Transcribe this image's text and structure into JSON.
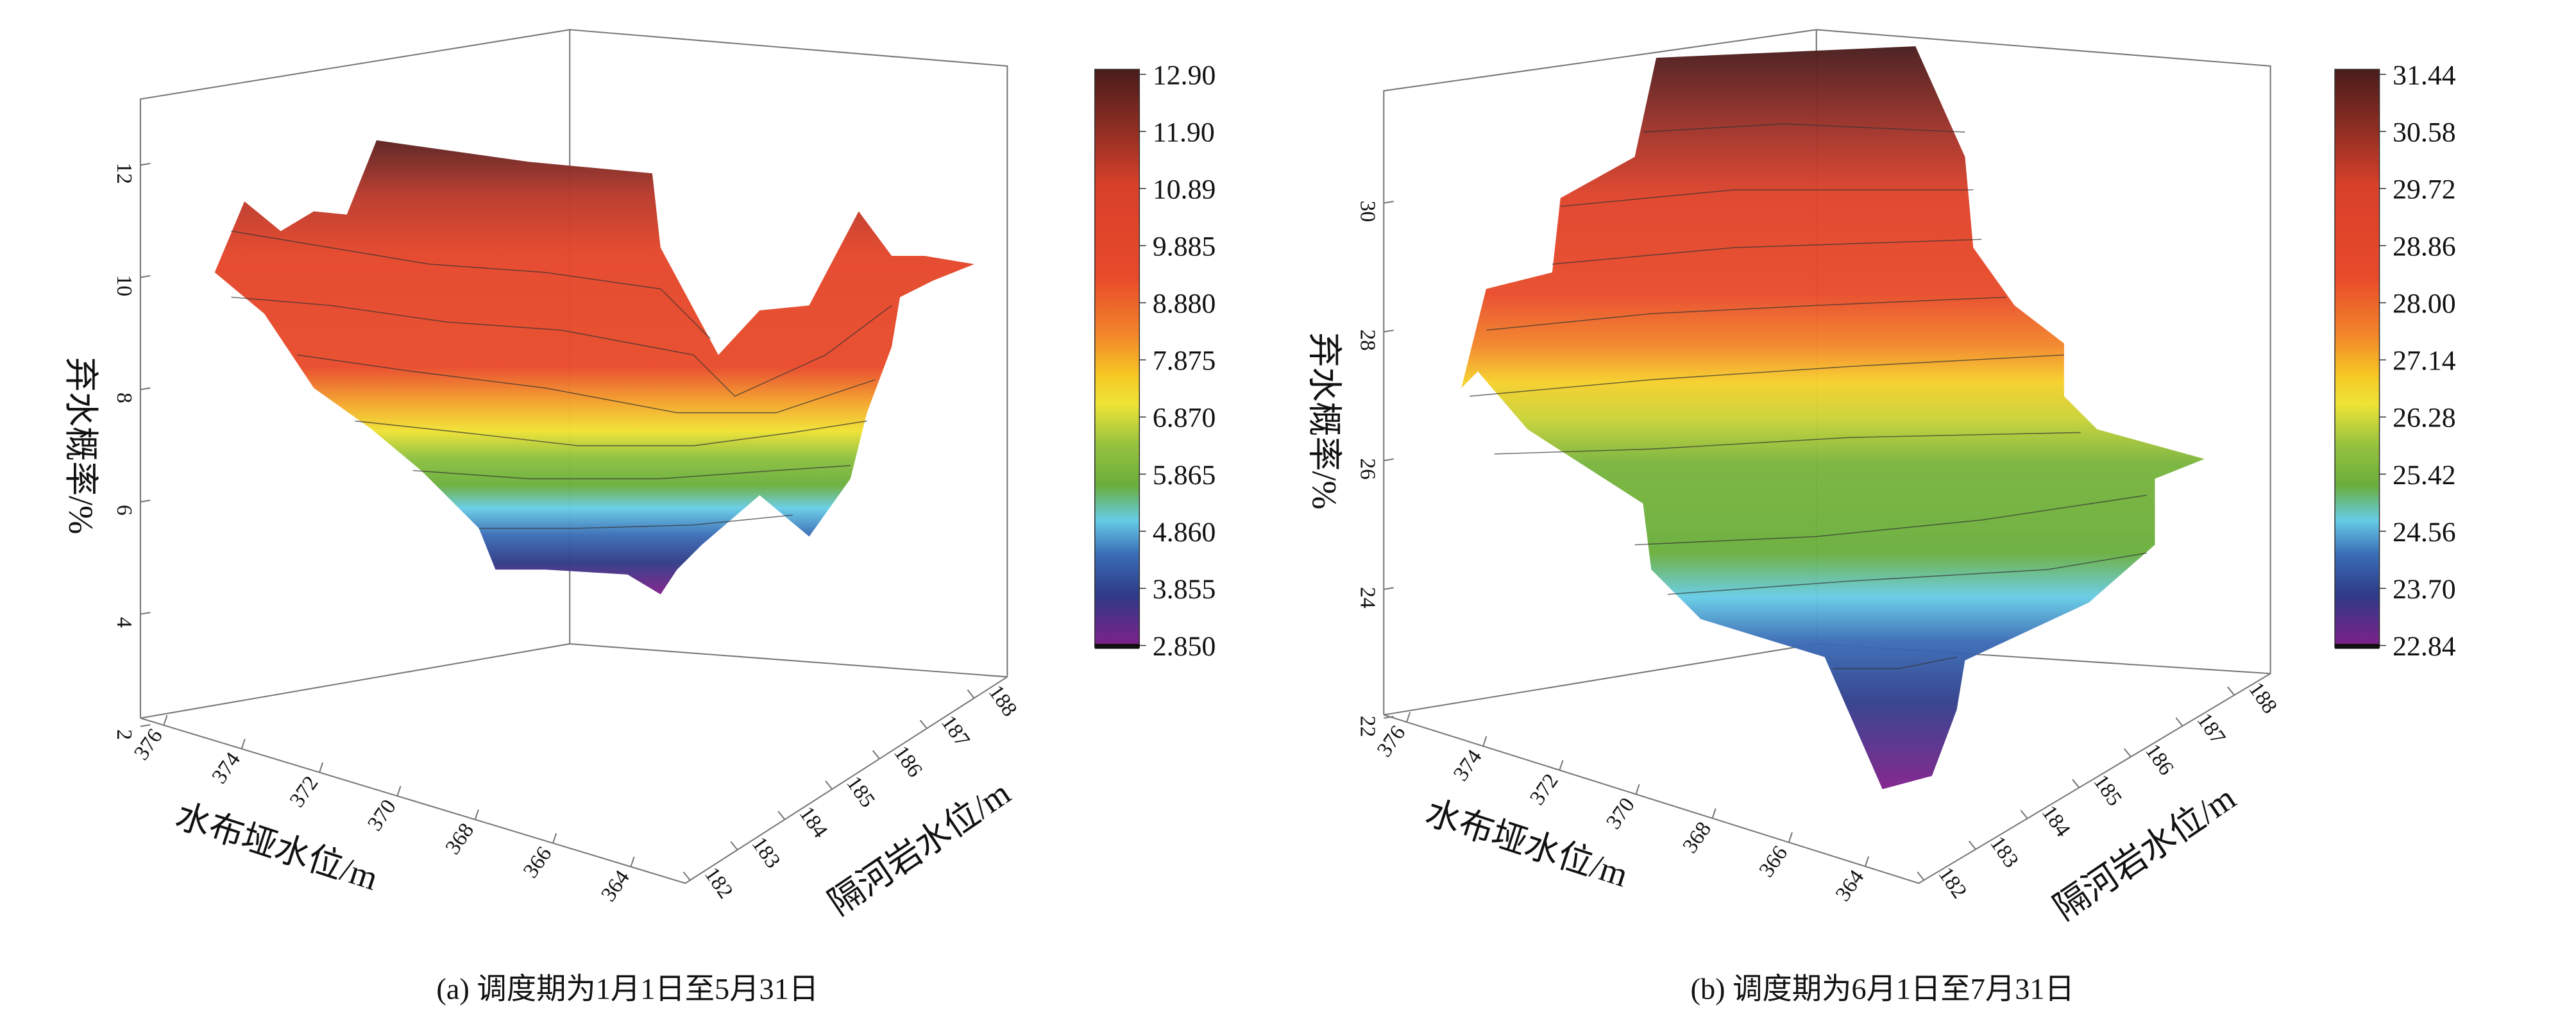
{
  "chart_data": [
    {
      "type": "surface",
      "panel_caption": "(a) 调度期为1月1日至5月31日",
      "xlabel": "水布垭水位/m",
      "ylabel": "隔河岩水位/m",
      "zlabel": "弃水概率/%",
      "x_ticks": [
        "376",
        "374",
        "372",
        "370",
        "368",
        "366",
        "364"
      ],
      "y_ticks": [
        "182",
        "183",
        "184",
        "185",
        "186",
        "187",
        "188"
      ],
      "z_ticks": [
        "12",
        "10",
        "8",
        "6",
        "4",
        "2"
      ],
      "xlim": [
        364,
        376
      ],
      "ylim": [
        182,
        188
      ],
      "zlim": [
        2,
        13
      ],
      "colorbar_labels": [
        "12.90",
        "11.90",
        "10.89",
        "9.885",
        "8.880",
        "7.875",
        "6.870",
        "5.865",
        "4.860",
        "3.855",
        "2.850"
      ],
      "colorbar_range": [
        2.85,
        12.9
      ],
      "colormap": "rainbow (purple-blue-cyan-green-yellow-orange-red-dark brown)"
    },
    {
      "type": "surface",
      "panel_caption": "(b) 调度期为6月1日至7月31日",
      "xlabel": "水布垭水位/m",
      "ylabel": "隔河岩水位/m",
      "zlabel": "弃水概率/%",
      "x_ticks": [
        "376",
        "374",
        "372",
        "370",
        "368",
        "366",
        "364"
      ],
      "y_ticks": [
        "182",
        "183",
        "184",
        "185",
        "186",
        "187",
        "188"
      ],
      "z_ticks": [
        "30",
        "28",
        "26",
        "24",
        "22"
      ],
      "xlim": [
        364,
        376
      ],
      "ylim": [
        182,
        188
      ],
      "zlim": [
        22,
        31.5
      ],
      "colorbar_labels": [
        "31.44",
        "30.58",
        "29.72",
        "28.86",
        "28.00",
        "27.14",
        "26.28",
        "25.42",
        "24.56",
        "23.70",
        "22.84"
      ],
      "colorbar_range": [
        22.84,
        31.44
      ],
      "colormap": "rainbow (purple-blue-cyan-green-yellow-orange-red-dark brown)"
    }
  ]
}
